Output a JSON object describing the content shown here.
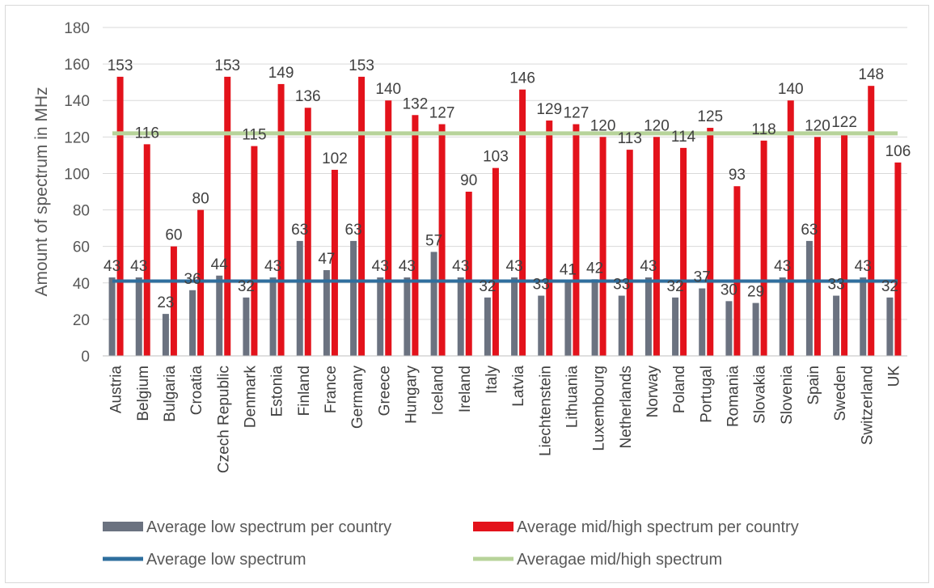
{
  "chart_data": {
    "type": "bar",
    "title": "",
    "xlabel": "",
    "ylabel": "Amount of spectrum in MHz",
    "ylim": [
      0,
      180
    ],
    "yticks": [
      0,
      20,
      40,
      60,
      80,
      100,
      120,
      140,
      160,
      180
    ],
    "grid": true,
    "legend_position": "bottom",
    "categories": [
      "Austria",
      "Belgium",
      "Bulgaria",
      "Croatia",
      "Czech Republic",
      "Denmark",
      "Estonia",
      "Finland",
      "France",
      "Germany",
      "Greece",
      "Hungary",
      "Iceland",
      "Ireland",
      "Italy",
      "Latvia",
      "Liechtenstein",
      "Lithuania",
      "Luxembourg",
      "Netherlands",
      "Norway",
      "Poland",
      "Portugal",
      "Romania",
      "Slovakia",
      "Slovenia",
      "Spain",
      "Sweden",
      "Switzerland",
      "UK"
    ],
    "series": [
      {
        "name": "Average low spectrum per country",
        "kind": "bar",
        "color": "#6b7280",
        "values": [
          43,
          43,
          23,
          36,
          44,
          32,
          43,
          63,
          47,
          63,
          43,
          43,
          57,
          43,
          32,
          43,
          33,
          41,
          42,
          33,
          43,
          32,
          37,
          30,
          29,
          43,
          63,
          33,
          43,
          32
        ]
      },
      {
        "name": "Average mid/high spectrum per country",
        "kind": "bar",
        "color": "#e3121b",
        "values": [
          153,
          116,
          60,
          80,
          153,
          115,
          149,
          136,
          102,
          153,
          140,
          132,
          127,
          90,
          103,
          146,
          129,
          127,
          120,
          113,
          120,
          114,
          125,
          93,
          118,
          140,
          120,
          122,
          148,
          106
        ]
      },
      {
        "name": "Average low spectrum",
        "kind": "line",
        "color": "#2e6e9e",
        "value": 41
      },
      {
        "name": "Averagae mid/high spectrum",
        "kind": "line",
        "color": "#b7d39a",
        "value": 122
      }
    ]
  }
}
